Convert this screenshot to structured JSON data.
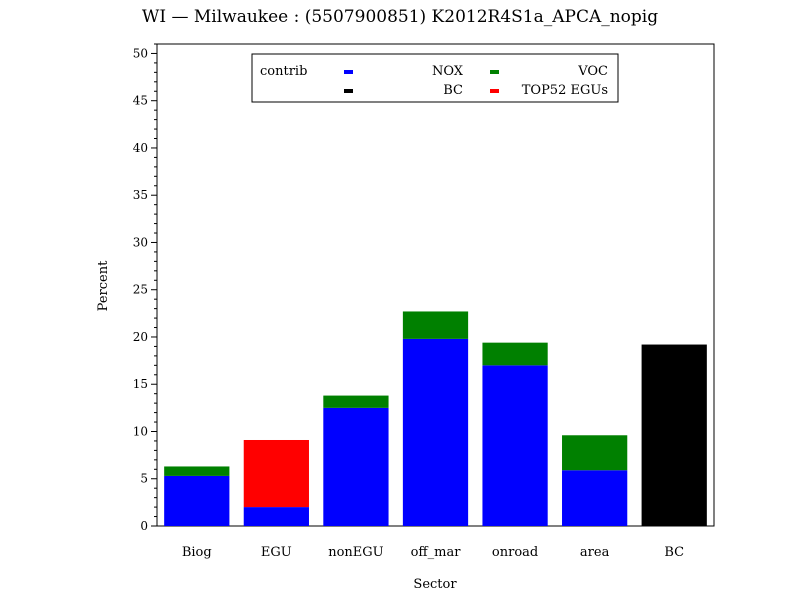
{
  "chart_data": {
    "type": "bar",
    "stacked": true,
    "title": "WI — Milwaukee : (5507900851) K2012R4S1a_APCA_nopig",
    "xlabel": "Sector",
    "ylabel": "Percent",
    "ylim": [
      0,
      51
    ],
    "yticks": [
      0,
      5,
      10,
      15,
      20,
      25,
      30,
      35,
      40,
      45,
      50
    ],
    "categories": [
      "Biog",
      "EGU",
      "nonEGU",
      "off_mar",
      "onroad",
      "area",
      "BC"
    ],
    "legend": {
      "title": "contrib",
      "position": "top-center",
      "entries": [
        {
          "label": "NOX",
          "color": "#0000ff"
        },
        {
          "label": "VOC",
          "color": "#008000"
        },
        {
          "label": "BC",
          "color": "#000000"
        },
        {
          "label": "TOP52 EGUs",
          "color": "#ff0000"
        }
      ]
    },
    "series": [
      {
        "name": "NOX",
        "color": "#0000ff",
        "values": [
          5.3,
          2.0,
          12.5,
          19.8,
          17.0,
          5.9,
          0
        ]
      },
      {
        "name": "TOP52 EGUs",
        "color": "#ff0000",
        "values": [
          0,
          7.1,
          0,
          0,
          0,
          0,
          0
        ]
      },
      {
        "name": "VOC",
        "color": "#008000",
        "values": [
          1.0,
          0,
          1.3,
          2.9,
          2.4,
          3.7,
          0
        ]
      },
      {
        "name": "BC",
        "color": "#000000",
        "values": [
          0,
          0,
          0,
          0,
          0,
          0,
          19.2
        ]
      }
    ],
    "grid": false
  }
}
